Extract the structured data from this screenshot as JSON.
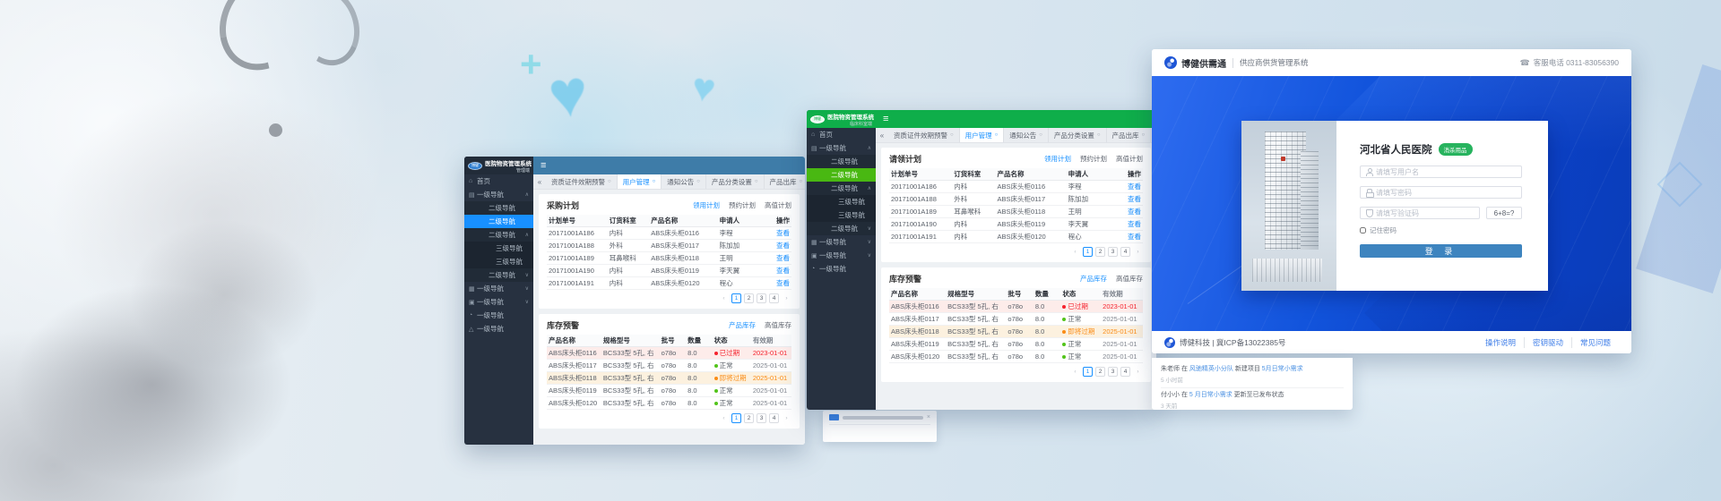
{
  "colors": {
    "admin_header": "#3e7ca8",
    "admin_selected": "#1890ff",
    "clinic_header": "#0fae4a",
    "clinic_selected": "#49b812",
    "link_blue": "#1890ff",
    "login_button": "#3d84bf",
    "banner_blue": "#0b41c6",
    "badge_green": "#27b35e",
    "expired_red": "#f5222d",
    "warn_orange": "#fa8c16",
    "ok_green": "#52c41a"
  },
  "windows": {
    "admin": {
      "brand": {
        "logo": "博健",
        "title": "医院物资管理系统",
        "subtitle": "管理端"
      },
      "menu_icon": "≡",
      "collapse_icon": "«",
      "sidebar": [
        {
          "icon": "⌂",
          "label": "首页",
          "cls": "lv1"
        },
        {
          "icon": "▤",
          "label": "一级导航",
          "arrow": "∧",
          "cls": "lv1"
        },
        {
          "label": "二级导航",
          "cls": "lv2"
        },
        {
          "label": "二级导航",
          "cls": "lv2 sel"
        },
        {
          "label": "二级导航",
          "arrow": "∧",
          "cls": "lv2"
        },
        {
          "label": "三级导航",
          "cls": "lv3"
        },
        {
          "label": "三级导航",
          "cls": "lv3"
        },
        {
          "label": "二级导航",
          "arrow": "∨",
          "cls": "lv2"
        },
        {
          "icon": "▦",
          "label": "一级导航",
          "arrow": "∨",
          "cls": "lv1"
        },
        {
          "icon": "▣",
          "label": "一级导航",
          "arrow": "∨",
          "cls": "lv1"
        },
        {
          "icon": "◔",
          "label": "一级导航",
          "cls": "lv1"
        },
        {
          "icon": "△",
          "label": "一级导航",
          "cls": "lv1"
        }
      ],
      "tabs": [
        {
          "label": "资质证件效期预警",
          "close": "○",
          "cls": ""
        },
        {
          "label": "用户管理",
          "close": "○",
          "cls": "active"
        },
        {
          "label": "通知公告",
          "close": "○",
          "cls": ""
        },
        {
          "label": "产品分类设置",
          "close": "○",
          "cls": ""
        },
        {
          "label": "产品出库",
          "close": "○",
          "cls": ""
        }
      ],
      "plan": {
        "title": "采购计划",
        "links": [
          {
            "label": "领用计划",
            "cls": "active"
          },
          {
            "label": "预约计划",
            "cls": ""
          },
          {
            "label": "高值计划",
            "cls": ""
          }
        ],
        "headers": [
          {
            "t": "计划单号",
            "cls": "c1"
          },
          {
            "t": "订货科室",
            "cls": "c2"
          },
          {
            "t": "产品名称",
            "cls": "c3"
          },
          {
            "t": "申请人",
            "cls": "c4"
          },
          {
            "t": "操作",
            "cls": "c5"
          }
        ],
        "rows": [
          {
            "id": "20171001A186",
            "dept": "内科",
            "product": "ABS床头柜0116",
            "applicant": "李程",
            "action": "查看"
          },
          {
            "id": "20171001A188",
            "dept": "外科",
            "product": "ABS床头柜0117",
            "applicant": "陈加加",
            "action": "查看"
          },
          {
            "id": "20171001A189",
            "dept": "耳鼻喉科",
            "product": "ABS床头柜0118",
            "applicant": "王明",
            "action": "查看"
          },
          {
            "id": "20171001A190",
            "dept": "内科",
            "product": "ABS床头柜0119",
            "applicant": "李天翼",
            "action": "查看"
          },
          {
            "id": "20171001A191",
            "dept": "内科",
            "product": "ABS床头柜0120",
            "applicant": "程心",
            "action": "查看"
          }
        ],
        "pager": [
          {
            "t": "‹",
            "cls": "nav"
          },
          {
            "t": "1",
            "cls": "cur"
          },
          {
            "t": "2",
            "cls": ""
          },
          {
            "t": "3",
            "cls": ""
          },
          {
            "t": "4",
            "cls": ""
          },
          {
            "t": "›",
            "cls": "nav"
          }
        ]
      },
      "inventory": {
        "title": "库存预警",
        "links": [
          {
            "label": "产品库存",
            "cls": "active"
          },
          {
            "label": "高值库存",
            "cls": ""
          }
        ],
        "headers": [
          {
            "t": "产品名称",
            "cls": "i1"
          },
          {
            "t": "规格型号",
            "cls": "i2"
          },
          {
            "t": "批号",
            "cls": "i3"
          },
          {
            "t": "数量",
            "cls": "i4"
          },
          {
            "t": "状态",
            "cls": "i5"
          },
          {
            "t": "有效期",
            "cls": "i6"
          }
        ],
        "rows": [
          {
            "name": "ABS床头柜0116",
            "spec": "BCS33型 5孔, 右",
            "batch": "o78o",
            "qty": "8.0",
            "status": "已过期",
            "date": "2023-01-01",
            "cls": "expired"
          },
          {
            "name": "ABS床头柜0117",
            "spec": "BCS33型 5孔, 右",
            "batch": "o78o",
            "qty": "8.0",
            "status": "正常",
            "date": "2025-01-01",
            "cls": "normal"
          },
          {
            "name": "ABS床头柜0118",
            "spec": "BCS33型 5孔, 右",
            "batch": "o78o",
            "qty": "8.0",
            "status": "即将过期",
            "date": "2025-01-01",
            "cls": "warn"
          },
          {
            "name": "ABS床头柜0119",
            "spec": "BCS33型 5孔, 右",
            "batch": "o78o",
            "qty": "8.0",
            "status": "正常",
            "date": "2025-01-01",
            "cls": "normal"
          },
          {
            "name": "ABS床头柜0120",
            "spec": "BCS33型 5孔, 右",
            "batch": "o78o",
            "qty": "8.0",
            "status": "正常",
            "date": "2025-01-01",
            "cls": "normal"
          }
        ],
        "pager": [
          {
            "t": "‹",
            "cls": "nav"
          },
          {
            "t": "1",
            "cls": "cur"
          },
          {
            "t": "2",
            "cls": ""
          },
          {
            "t": "3",
            "cls": ""
          },
          {
            "t": "4",
            "cls": ""
          },
          {
            "t": "›",
            "cls": "nav"
          }
        ]
      }
    },
    "clinic": {
      "brand": {
        "logo": "博健",
        "title": "医院物资管理系统",
        "subtitle": "临床科室端"
      },
      "menu_icon": "≡",
      "collapse_icon": "«",
      "sidebar": [
        {
          "icon": "⌂",
          "label": "首页",
          "cls": "lv1"
        },
        {
          "icon": "▤",
          "label": "一级导航",
          "arrow": "∧",
          "cls": "lv1"
        },
        {
          "label": "二级导航",
          "cls": "lv2"
        },
        {
          "label": "二级导航",
          "cls": "lv2 sel"
        },
        {
          "label": "二级导航",
          "arrow": "∧",
          "cls": "lv2"
        },
        {
          "label": "三级导航",
          "cls": "lv3"
        },
        {
          "label": "三级导航",
          "cls": "lv3"
        },
        {
          "label": "二级导航",
          "arrow": "∨",
          "cls": "lv2"
        },
        {
          "icon": "▦",
          "label": "一级导航",
          "arrow": "∨",
          "cls": "lv1"
        },
        {
          "icon": "▣",
          "label": "一级导航",
          "arrow": "∨",
          "cls": "lv1"
        },
        {
          "icon": "◔",
          "label": "一级导航",
          "cls": "lv1"
        }
      ],
      "tabs": [
        {
          "label": "资质证件效期预警",
          "close": "○",
          "cls": ""
        },
        {
          "label": "用户管理",
          "close": "○",
          "cls": "active"
        },
        {
          "label": "通知公告",
          "close": "○",
          "cls": ""
        },
        {
          "label": "产品分类设置",
          "close": "○",
          "cls": ""
        },
        {
          "label": "产品出库",
          "close": "○",
          "cls": ""
        }
      ],
      "plan": {
        "title": "请领计划",
        "links": [
          {
            "label": "领用计划",
            "cls": "active"
          },
          {
            "label": "预约计划",
            "cls": ""
          },
          {
            "label": "高值计划",
            "cls": ""
          }
        ],
        "headers": [
          {
            "t": "计划单号",
            "cls": "c1"
          },
          {
            "t": "订货科室",
            "cls": "c2"
          },
          {
            "t": "产品名称",
            "cls": "c3"
          },
          {
            "t": "申请人",
            "cls": "c4"
          },
          {
            "t": "操作",
            "cls": "c5"
          }
        ],
        "rows": [
          {
            "id": "20171001A186",
            "dept": "内科",
            "product": "ABS床头柜0116",
            "applicant": "李程",
            "action": "查看"
          },
          {
            "id": "20171001A188",
            "dept": "外科",
            "product": "ABS床头柜0117",
            "applicant": "陈加加",
            "action": "查看"
          },
          {
            "id": "20171001A189",
            "dept": "耳鼻喉科",
            "product": "ABS床头柜0118",
            "applicant": "王明",
            "action": "查看"
          },
          {
            "id": "20171001A190",
            "dept": "内科",
            "product": "ABS床头柜0119",
            "applicant": "李天翼",
            "action": "查看"
          },
          {
            "id": "20171001A191",
            "dept": "内科",
            "product": "ABS床头柜0120",
            "applicant": "程心",
            "action": "查看"
          }
        ],
        "pager": [
          {
            "t": "‹",
            "cls": "nav"
          },
          {
            "t": "1",
            "cls": "cur"
          },
          {
            "t": "2",
            "cls": ""
          },
          {
            "t": "3",
            "cls": ""
          },
          {
            "t": "4",
            "cls": ""
          },
          {
            "t": "›",
            "cls": "nav"
          }
        ]
      },
      "inventory": {
        "title": "库存预警",
        "links": [
          {
            "label": "产品库存",
            "cls": "active"
          },
          {
            "label": "高值库存",
            "cls": ""
          }
        ],
        "headers": [
          {
            "t": "产品名称",
            "cls": "i1"
          },
          {
            "t": "规格型号",
            "cls": "i2"
          },
          {
            "t": "批号",
            "cls": "i3"
          },
          {
            "t": "数量",
            "cls": "i4"
          },
          {
            "t": "状态",
            "cls": "i5"
          },
          {
            "t": "有效期",
            "cls": "i6"
          }
        ],
        "rows": [
          {
            "name": "ABS床头柜0116",
            "spec": "BCS33型 5孔, 右",
            "batch": "o78o",
            "qty": "8.0",
            "status": "已过期",
            "date": "2023-01-01",
            "cls": "expired"
          },
          {
            "name": "ABS床头柜0117",
            "spec": "BCS33型 5孔, 右",
            "batch": "o78o",
            "qty": "8.0",
            "status": "正常",
            "date": "2025-01-01",
            "cls": "normal"
          },
          {
            "name": "ABS床头柜0118",
            "spec": "BCS33型 5孔, 右",
            "batch": "o78o",
            "qty": "8.0",
            "status": "即将过期",
            "date": "2025-01-01",
            "cls": "warn"
          },
          {
            "name": "ABS床头柜0119",
            "spec": "BCS33型 5孔, 右",
            "batch": "o78o",
            "qty": "8.0",
            "status": "正常",
            "date": "2025-01-01",
            "cls": "normal"
          },
          {
            "name": "ABS床头柜0120",
            "spec": "BCS33型 5孔, 右",
            "batch": "o78o",
            "qty": "8.0",
            "status": "正常",
            "date": "2025-01-01",
            "cls": "normal"
          }
        ],
        "pager": [
          {
            "t": "‹",
            "cls": "nav"
          },
          {
            "t": "1",
            "cls": "cur"
          },
          {
            "t": "2",
            "cls": ""
          },
          {
            "t": "3",
            "cls": ""
          },
          {
            "t": "4",
            "cls": ""
          },
          {
            "t": "›",
            "cls": "nav"
          }
        ]
      }
    },
    "login": {
      "header": {
        "brand": "博健供需通",
        "subtitle": "供应商供货管理系统",
        "phone": "客服电话 0311-83056390",
        "phone_icon": "☎"
      },
      "form": {
        "hospital": "河北省人民医院",
        "badge": "消杀用品",
        "username_placeholder": "请填写用户名",
        "password_placeholder": "请填写密码",
        "captcha_placeholder": "请填写验证码",
        "captcha_question": "6+8=?",
        "remember_label": "记住密码",
        "submit_label": "登 录"
      },
      "footer": {
        "company": "博健科技 |  冀ICP备13022385号",
        "links": [
          {
            "label": "操作说明"
          },
          {
            "label": "密钥驱动"
          },
          {
            "label": "常见问题"
          }
        ]
      }
    }
  },
  "feed": {
    "item1": {
      "pre": "朱老师 在 ",
      "link1": "风驰精英小分队",
      "mid": " 新建项目 ",
      "link2": "5月日常小需求",
      "time": "5 小时前"
    },
    "item2": {
      "pre": "付小小 在 ",
      "link1": "5 月日常小需求",
      "post": " 更新至已发布状态",
      "time": "3 天前"
    }
  }
}
